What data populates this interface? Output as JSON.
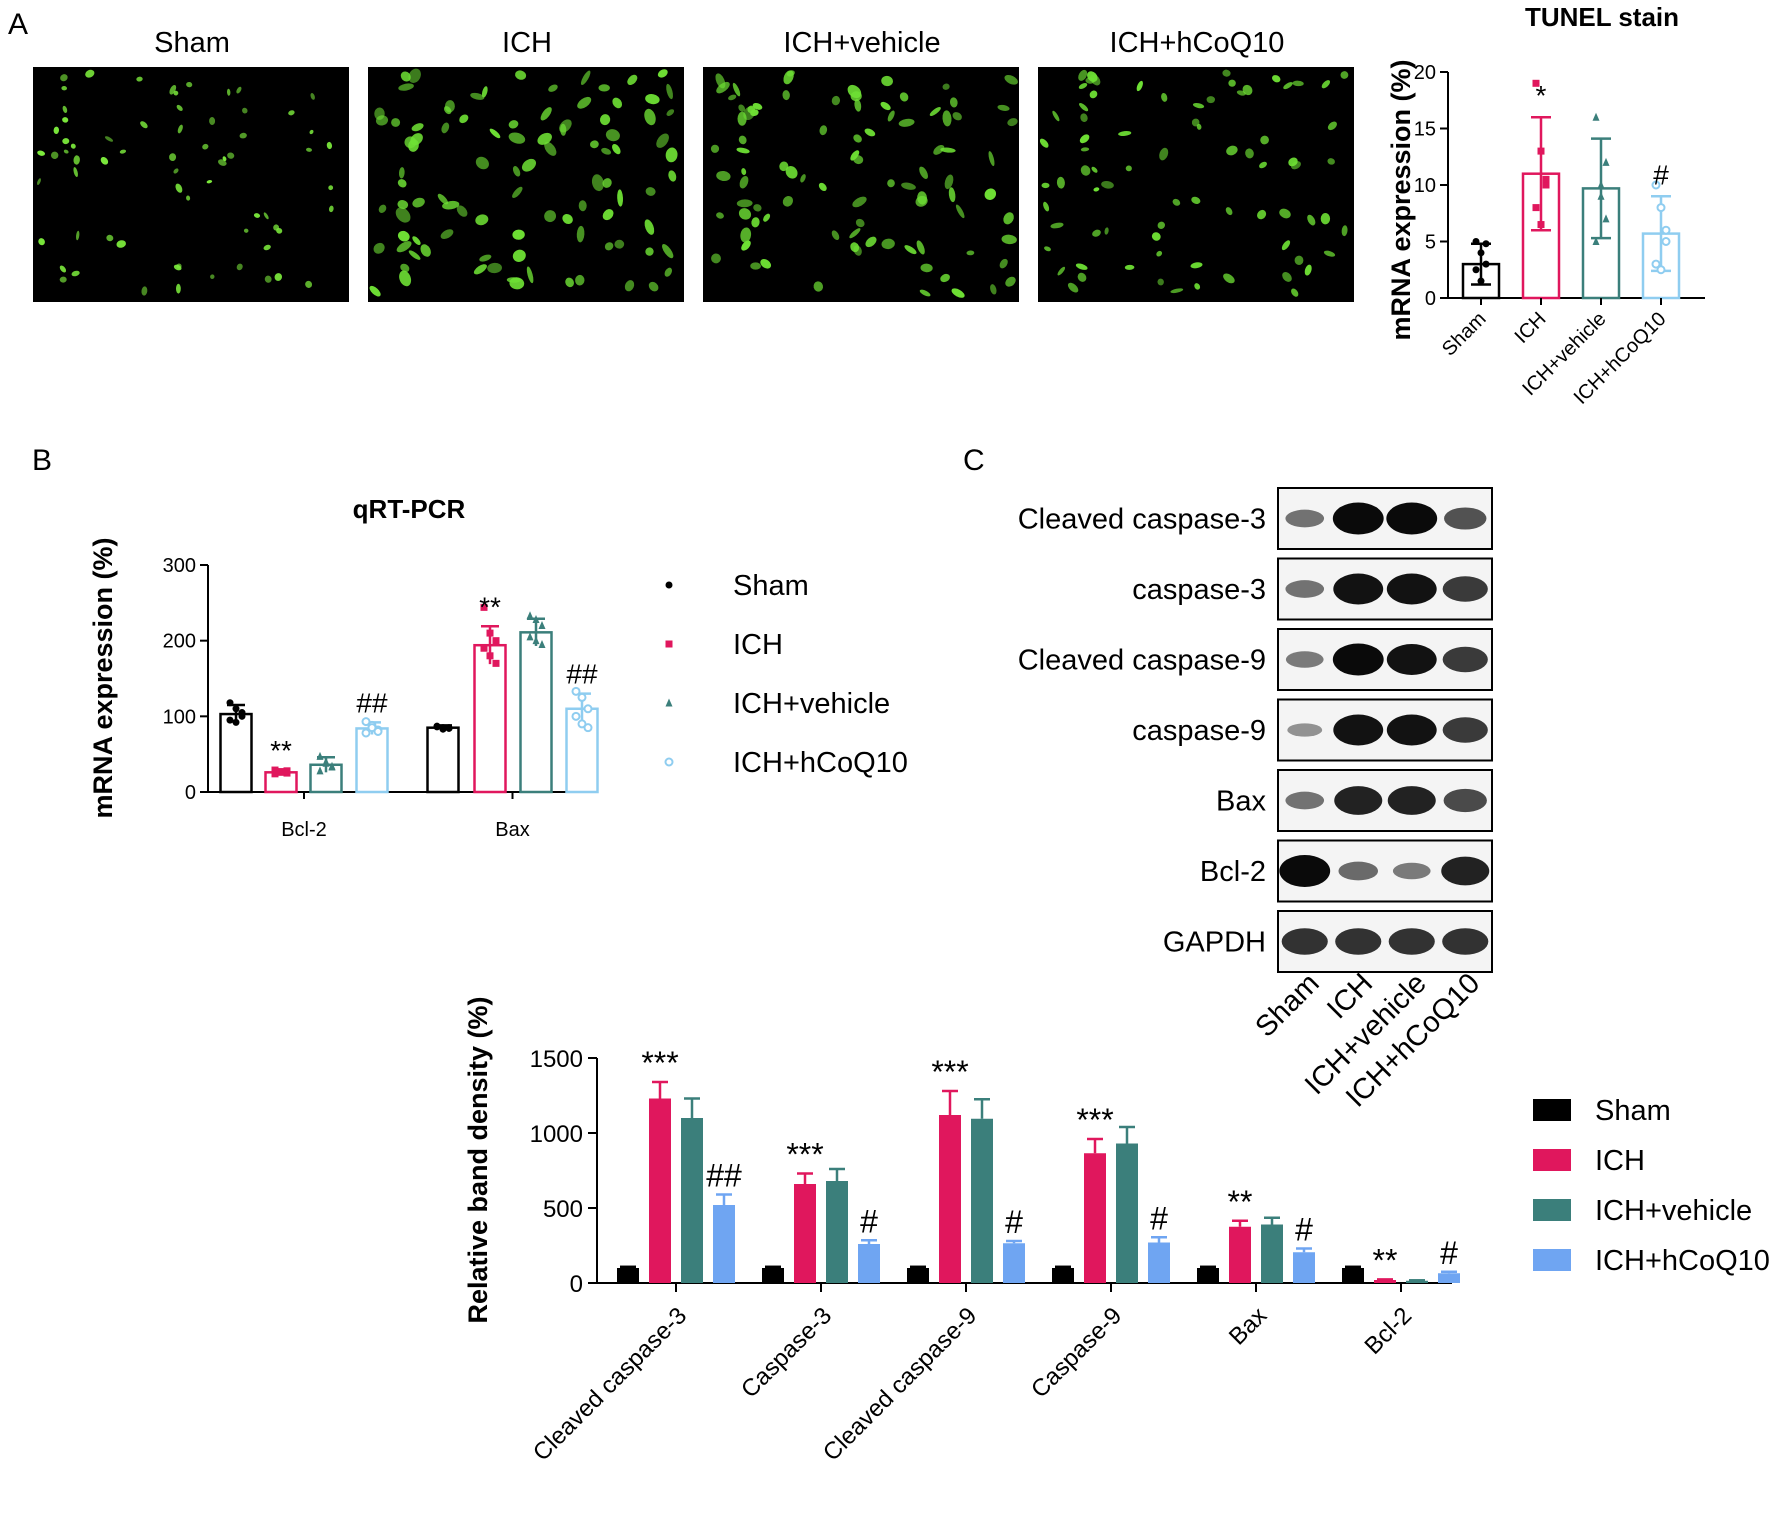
{
  "panel_labels": [
    "A",
    "B",
    "C"
  ],
  "micrographs": [
    {
      "label": "Sham",
      "density": 0.7,
      "cell_size": 0.75,
      "color": "#7CEB3C"
    },
    {
      "label": "ICH",
      "density": 1.0,
      "cell_size": 1.25,
      "color": "#6EE034"
    },
    {
      "label": "ICH+vehicle",
      "density": 0.95,
      "cell_size": 1.15,
      "color": "#6EE034"
    },
    {
      "label": "ICH+hCoQ10",
      "density": 0.8,
      "cell_size": 0.95,
      "color": "#6EE034"
    }
  ],
  "groups": [
    "Sham",
    "ICH",
    "ICH+vehicle",
    "ICH+hCoQ10"
  ],
  "colors": {
    "sham": "#000000",
    "ich": "#E0175D",
    "vehicle": "#3B7F7B",
    "hcoq10_light": "#8FCDF0",
    "hcoq10_bar": "#6FA5F2"
  },
  "blot": {
    "proteins": [
      "Cleaved caspase-3",
      "caspase-3",
      "Cleaved caspase-9",
      "caspase-9",
      "Bax",
      "Bcl-2",
      "GAPDH"
    ],
    "lanes": [
      "Sham",
      "ICH",
      "ICH+vehicle",
      "ICH+hCoQ10"
    ],
    "intensity": [
      [
        0.35,
        1.0,
        1.0,
        0.55
      ],
      [
        0.35,
        0.95,
        0.95,
        0.7
      ],
      [
        0.3,
        1.0,
        0.95,
        0.7
      ],
      [
        0.15,
        0.95,
        0.95,
        0.7
      ],
      [
        0.35,
        0.85,
        0.85,
        0.6
      ],
      [
        1.0,
        0.4,
        0.3,
        0.85
      ],
      [
        0.75,
        0.75,
        0.75,
        0.75
      ]
    ]
  },
  "chart_data": [
    {
      "type": "bar",
      "title": "TUNEL stain",
      "ylabel": "mRNA expression (%)",
      "categories": [
        "Sham",
        "ICH",
        "ICH+vehicle",
        "ICH+hCoQ10"
      ],
      "values": [
        3,
        11,
        9.7,
        5.7
      ],
      "errors": [
        1.8,
        5,
        4.4,
        3.3
      ],
      "points": [
        [
          5,
          4,
          3,
          2.5,
          1.5,
          4.8
        ],
        [
          19,
          13,
          10,
          8,
          6.5,
          10.5
        ],
        [
          16,
          10,
          7,
          5,
          9,
          12
        ],
        [
          10,
          8,
          6,
          3,
          2.5,
          5
        ]
      ],
      "ylim": [
        0,
        20
      ],
      "yticks": [
        0,
        5,
        10,
        15,
        20
      ],
      "annotations": [
        "",
        "*",
        "",
        "#"
      ]
    },
    {
      "type": "bar",
      "title": "qRT-PCR",
      "ylabel": "mRNA expression (%)",
      "categories": [
        "Bcl-2",
        "Bax"
      ],
      "series": [
        {
          "name": "Sham",
          "values": [
            103,
            85
          ],
          "errors": [
            12,
            3
          ],
          "points": [
            [
              118,
              110,
              100,
              95,
              92,
              105
            ],
            [
              87,
              85,
              84,
              86,
              83,
              85
            ]
          ]
        },
        {
          "name": "ICH",
          "values": [
            26,
            194
          ],
          "errors": [
            3,
            25
          ],
          "points": [
            [
              29,
              27,
              25,
              24,
              26,
              28
            ],
            [
              244,
              210,
              200,
              190,
              180,
              170
            ]
          ]
        },
        {
          "name": "ICH+vehicle",
          "values": [
            36,
            211
          ],
          "errors": [
            10,
            18
          ],
          "points": [
            [
              47,
              40,
              33,
              28,
              38,
              34
            ],
            [
              233,
              228,
              220,
              205,
              200,
              195
            ]
          ]
        },
        {
          "name": "ICH+hCoQ10",
          "values": [
            84,
            110
          ],
          "errors": [
            8,
            20
          ],
          "points": [
            [
              93,
              88,
              82,
              78,
              85,
              80
            ],
            [
              133,
              125,
              110,
              100,
              90,
              85
            ]
          ]
        }
      ],
      "ylim": [
        0,
        300
      ],
      "yticks": [
        0,
        100,
        200,
        300
      ],
      "annotations": [
        [
          "",
          "**",
          "",
          "##"
        ],
        [
          "",
          "**",
          "",
          "##"
        ]
      ],
      "legend": [
        "Sham",
        "ICH",
        "ICH+vehicle",
        "ICH+hCoQ10"
      ]
    },
    {
      "type": "bar",
      "ylabel": "Relative band density (%)",
      "categories": [
        "Cleaved caspase-3",
        "Caspase-3",
        "Cleaved caspase-9",
        "Caspase-9",
        "Bax",
        "Bcl-2"
      ],
      "series": [
        {
          "name": "Sham",
          "values": [
            100,
            100,
            100,
            100,
            100,
            100
          ],
          "errors": [
            8,
            8,
            8,
            8,
            8,
            8
          ]
        },
        {
          "name": "ICH",
          "values": [
            1230,
            660,
            1120,
            865,
            375,
            20
          ],
          "errors": [
            110,
            70,
            160,
            95,
            40,
            4
          ]
        },
        {
          "name": "ICH+vehicle",
          "values": [
            1100,
            680,
            1095,
            930,
            390,
            15
          ],
          "errors": [
            130,
            80,
            130,
            110,
            45,
            3
          ]
        },
        {
          "name": "ICH+hCoQ10",
          "values": [
            520,
            260,
            265,
            270,
            205,
            65
          ],
          "errors": [
            70,
            25,
            15,
            35,
            25,
            10
          ]
        }
      ],
      "ylim": [
        0,
        1500
      ],
      "yticks": [
        0,
        500,
        1000,
        1500
      ],
      "annotations": [
        [
          "",
          "***",
          "",
          "##"
        ],
        [
          "",
          "***",
          "",
          "#"
        ],
        [
          "",
          "***",
          "",
          "#"
        ],
        [
          "",
          "***",
          "",
          "#"
        ],
        [
          "",
          "**",
          "",
          "#"
        ],
        [
          "",
          "**",
          "",
          "#"
        ]
      ],
      "legend": [
        "Sham",
        "ICH",
        "ICH+vehicle",
        "ICH+hCoQ10"
      ]
    }
  ]
}
